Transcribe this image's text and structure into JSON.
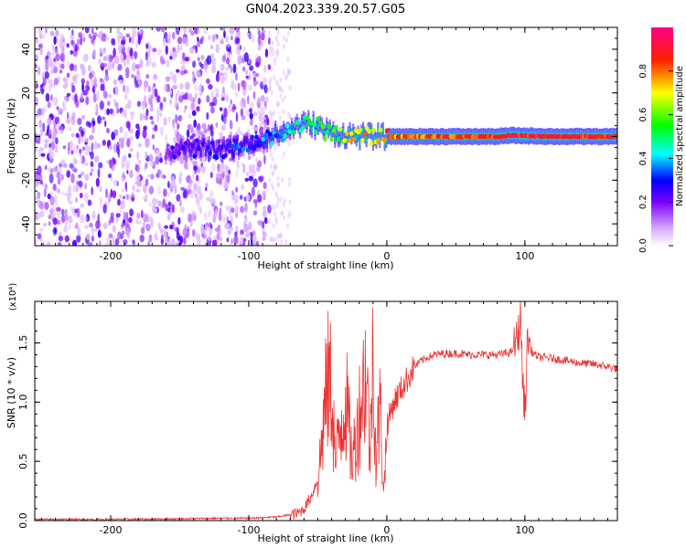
{
  "title": "GN04.2023.339.20.57.G05",
  "chart_data": [
    {
      "type": "heatmap",
      "xlabel": "Height of straight line (km)",
      "ylabel": "Frequency (Hz)",
      "xlim": [
        -255,
        167
      ],
      "ylim": [
        -50,
        50
      ],
      "xticks": [
        -200,
        -100,
        0,
        100
      ],
      "yticks": [
        -40,
        -20,
        0,
        20,
        40
      ],
      "colorbar": {
        "label": "Normalized spectral amplitude",
        "range": [
          0,
          1
        ],
        "ticks": [
          "0.0",
          "0.2",
          "0.4",
          "0.6",
          "0.8"
        ],
        "colors": [
          "#ffffff",
          "#8a00ff",
          "#0000ff",
          "#00ffff",
          "#00ff00",
          "#ffff00",
          "#ff0000",
          "#ff0088"
        ]
      },
      "noise_region": {
        "x_range": [
          -255,
          -85
        ],
        "note_level": 0.15
      },
      "signal_track": [
        {
          "x": -160,
          "freq": -8,
          "amp": 0.18
        },
        {
          "x": -150,
          "freq": -5,
          "amp": 0.22
        },
        {
          "x": -140,
          "freq": -6,
          "amp": 0.24
        },
        {
          "x": -130,
          "freq": -5,
          "amp": 0.25
        },
        {
          "x": -120,
          "freq": -6,
          "amp": 0.26
        },
        {
          "x": -110,
          "freq": -5,
          "amp": 0.28
        },
        {
          "x": -95,
          "freq": -3,
          "amp": 0.3
        },
        {
          "x": -85,
          "freq": 0,
          "amp": 0.35
        },
        {
          "x": -75,
          "freq": 2,
          "amp": 0.4
        },
        {
          "x": -65,
          "freq": 5,
          "amp": 0.45
        },
        {
          "x": -55,
          "freq": 6,
          "amp": 0.5
        },
        {
          "x": -45,
          "freq": 3,
          "amp": 0.55
        },
        {
          "x": -35,
          "freq": 1,
          "amp": 0.6
        },
        {
          "x": -25,
          "freq": 0.5,
          "amp": 0.7
        },
        {
          "x": -15,
          "freq": 0,
          "amp": 0.75
        },
        {
          "x": 0,
          "freq": 0,
          "amp": 0.8
        },
        {
          "x": 20,
          "freq": 0,
          "amp": 0.82
        },
        {
          "x": 50,
          "freq": 0,
          "amp": 0.85
        },
        {
          "x": 80,
          "freq": 0,
          "amp": 0.88
        },
        {
          "x": 90,
          "freq": 0.5,
          "amp": 0.9
        },
        {
          "x": 120,
          "freq": 0,
          "amp": 0.88
        },
        {
          "x": 167,
          "freq": 0,
          "amp": 0.87
        }
      ]
    },
    {
      "type": "line",
      "xlabel": "Height of straight line (km)",
      "ylabel": "SNR (10 * v/v)",
      "y_multiplier": "(x10⁴)",
      "xlim": [
        -255,
        167
      ],
      "ylim": [
        0,
        1.85
      ],
      "xticks": [
        -200,
        -100,
        0,
        100
      ],
      "yticks": [
        "0.0",
        "0.5",
        "1.0",
        "1.5"
      ],
      "series": [
        {
          "color": "#ee3333",
          "x": [
            -255,
            -200,
            -150,
            -120,
            -100,
            -80,
            -65,
            -60,
            -55,
            -50,
            -48,
            -45,
            -42,
            -40,
            -37,
            -35,
            -30,
            -25,
            -20,
            -15,
            -12,
            -10,
            -8,
            -5,
            -2,
            0,
            5,
            10,
            15,
            20,
            25,
            30,
            35,
            40,
            50,
            60,
            70,
            80,
            90,
            95,
            97,
            98,
            100,
            102,
            105,
            110,
            120,
            130,
            140,
            150,
            160,
            167
          ],
          "y": [
            0.01,
            0.01,
            0.015,
            0.02,
            0.02,
            0.03,
            0.06,
            0.1,
            0.2,
            0.35,
            0.55,
            0.95,
            1.2,
            1.1,
            0.45,
            0.7,
            1.05,
            0.5,
            0.9,
            1.3,
            0.55,
            1.6,
            0.5,
            0.95,
            0.25,
            0.8,
            1.0,
            1.1,
            1.2,
            1.3,
            1.35,
            1.38,
            1.4,
            1.41,
            1.41,
            1.4,
            1.4,
            1.4,
            1.42,
            1.55,
            1.75,
            1.25,
            0.9,
            1.55,
            1.42,
            1.38,
            1.37,
            1.35,
            1.33,
            1.32,
            1.3,
            1.28
          ]
        }
      ]
    }
  ]
}
